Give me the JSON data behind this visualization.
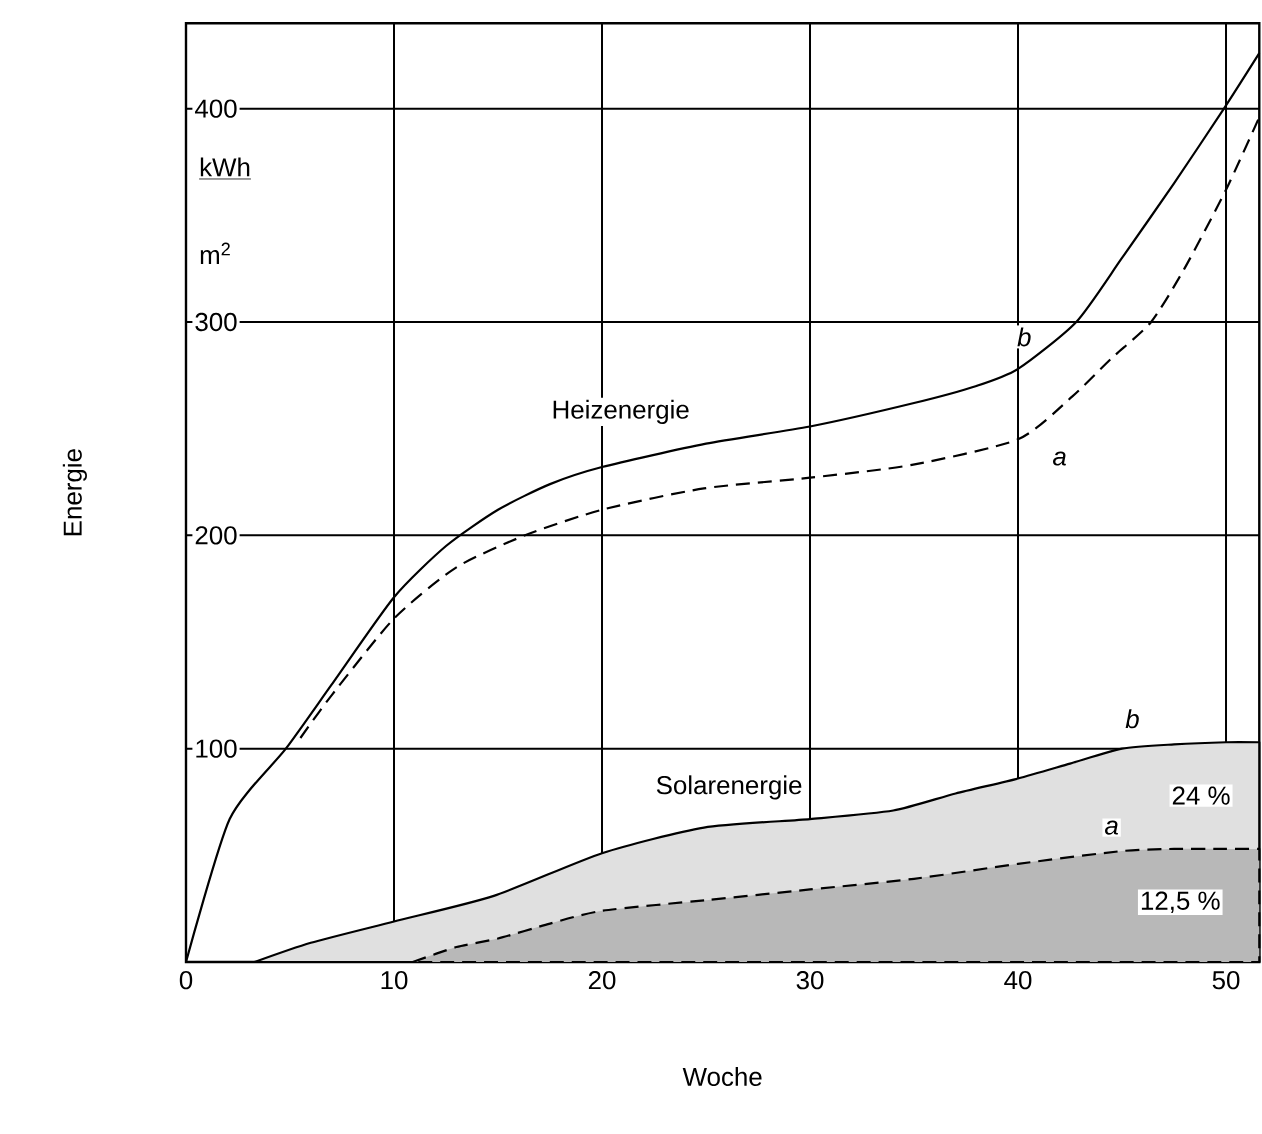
{
  "chart_data": {
    "type": "line",
    "xlabel": "Woche",
    "ylabel": "Energie",
    "xlim": [
      0,
      51.6
    ],
    "ylim": [
      0,
      440
    ],
    "xticks": [
      0,
      10,
      20,
      30,
      40,
      50
    ],
    "yticks": [
      100,
      200,
      300,
      400
    ],
    "grid": true,
    "marker": "none",
    "series": [
      {
        "color": "#000000",
        "line_style": "solid",
        "x": [
          0,
          2.1,
          4.8,
          7,
          10,
          12.5,
          15,
          17.5,
          20,
          25,
          30,
          35,
          38,
          40,
          42.8,
          45,
          47.5,
          49.9,
          51.6
        ],
        "values": [
          0,
          67,
          100,
          130,
          171,
          195,
          212,
          224,
          232,
          243,
          251,
          262,
          270,
          278,
          300,
          330,
          365,
          400,
          426
        ]
      },
      {
        "color": "#000000",
        "line_style": "dashed",
        "x": [
          5.5,
          7,
          10,
          13,
          16.3,
          20,
          24.9,
          30,
          34.9,
          40,
          42.6,
          44.5,
          46.4,
          48,
          50,
          51.6
        ],
        "values": [
          105,
          125,
          161,
          185,
          200,
          212,
          222,
          227,
          233,
          245,
          265,
          283,
          300,
          325,
          362,
          396
        ]
      },
      {
        "type": "area",
        "color": "#000000",
        "line_style": "solid",
        "x": [
          3.3,
          6,
          10,
          14.8,
          20,
          24.9,
          30,
          34,
          37,
          40,
          42.5,
          45,
          47.5,
          50,
          51.6
        ],
        "values": [
          0,
          9,
          19,
          31,
          51,
          63,
          67,
          71,
          79,
          86,
          93,
          100,
          102,
          103,
          103
        ]
      },
      {
        "type": "area",
        "color": "#000000",
        "line_style": "dashed",
        "x": [
          10.9,
          13,
          15,
          17.5,
          20,
          25,
          30,
          35,
          40,
          45,
          47.5,
          50,
          51.6
        ],
        "values": [
          0,
          7,
          11,
          18,
          24,
          29,
          34,
          39,
          46,
          52,
          53,
          53,
          53
        ]
      }
    ],
    "annotations": [
      "Heizenergie",
      "Solarenergie",
      {
        "text": "b",
        "x": 40.3,
        "y": 293
      },
      {
        "text": "a",
        "x": 42,
        "y": 236
      },
      {
        "text": "b",
        "x": 45.5,
        "y": 114
      },
      {
        "text": "a",
        "x": 44.5,
        "y": 63
      },
      {
        "text": "24 %",
        "x": 48.8,
        "y": 78
      },
      {
        "text": "12,5 %",
        "x": 47.8,
        "y": 28
      },
      "kWh",
      "m$^{2}$"
    ]
  }
}
